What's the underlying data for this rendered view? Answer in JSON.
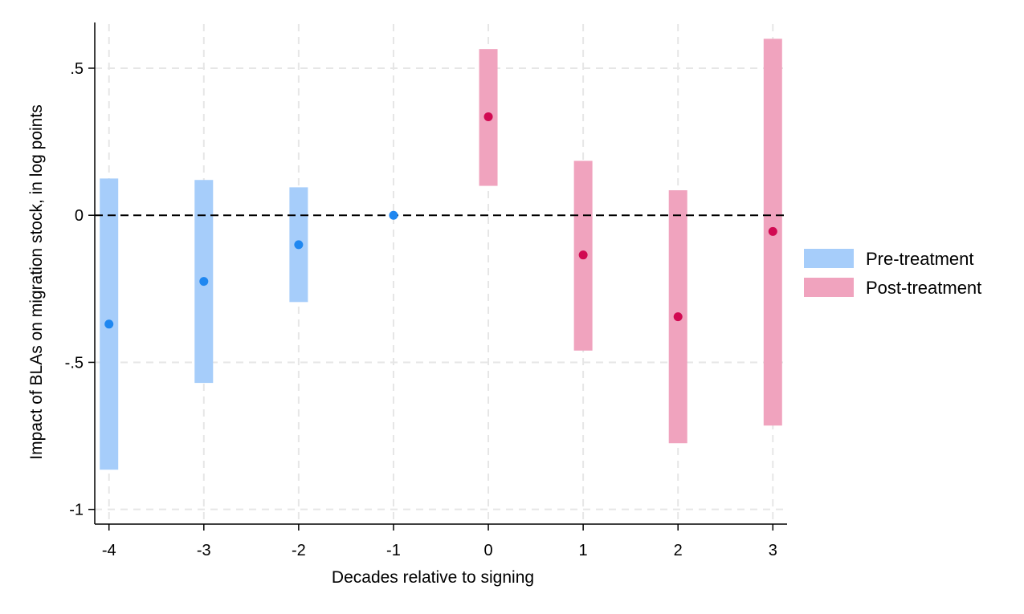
{
  "chart_data": {
    "type": "scatter",
    "xlabel": "Decades relative to signing",
    "ylabel": "Impact of BLAs on migration stock, in log points",
    "x_ticks": [
      {
        "value": -4,
        "label": "-4"
      },
      {
        "value": -3,
        "label": "-3"
      },
      {
        "value": -2,
        "label": "-2"
      },
      {
        "value": -1,
        "label": "-1"
      },
      {
        "value": 0,
        "label": "0"
      },
      {
        "value": 1,
        "label": "1"
      },
      {
        "value": 2,
        "label": "2"
      },
      {
        "value": 3,
        "label": "3"
      }
    ],
    "y_ticks": [
      {
        "value": 0.5,
        "label": ".5"
      },
      {
        "value": 0,
        "label": "0"
      },
      {
        "value": -0.5,
        "label": "-.5"
      },
      {
        "value": -1,
        "label": "-1"
      }
    ],
    "xlim": [
      -4.15,
      3.15
    ],
    "ylim": [
      -1.05,
      0.65
    ],
    "grid": true,
    "reference_line": 0,
    "legend_position": "right",
    "series": [
      {
        "name": "Pre-treatment",
        "bar_color": "#a6cdfa",
        "point_color": "#1f87f0",
        "points": [
          {
            "x": -4,
            "y": -0.37,
            "lo": -0.865,
            "hi": 0.125
          },
          {
            "x": -3,
            "y": -0.225,
            "lo": -0.57,
            "hi": 0.12
          },
          {
            "x": -2,
            "y": -0.1,
            "lo": -0.295,
            "hi": 0.095
          },
          {
            "x": -1,
            "y": 0,
            "lo": 0,
            "hi": 0
          }
        ]
      },
      {
        "name": "Post-treatment",
        "bar_color": "#f0a3be",
        "point_color": "#d10a52",
        "points": [
          {
            "x": 0,
            "y": 0.335,
            "lo": 0.1,
            "hi": 0.565
          },
          {
            "x": 1,
            "y": -0.135,
            "lo": -0.46,
            "hi": 0.185
          },
          {
            "x": 2,
            "y": -0.345,
            "lo": -0.775,
            "hi": 0.085
          },
          {
            "x": 3,
            "y": -0.055,
            "lo": -0.715,
            "hi": 0.6
          }
        ]
      }
    ]
  }
}
